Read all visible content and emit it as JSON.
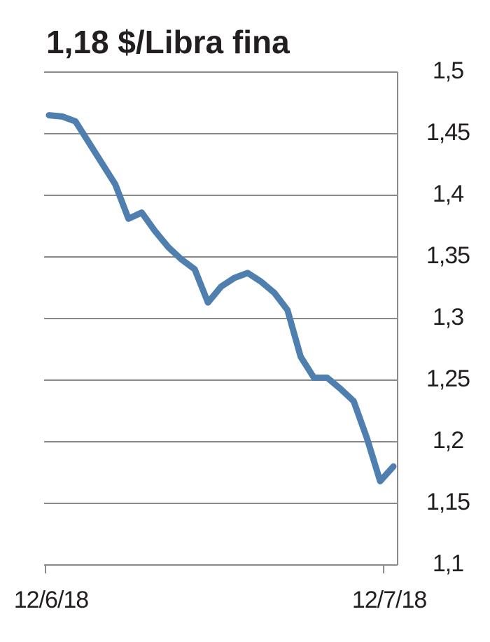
{
  "chart_data": {
    "type": "line",
    "title": "1,18 $/Libra fina",
    "categories": [
      "12/6/18",
      null,
      null,
      null,
      null,
      null,
      null,
      null,
      null,
      null,
      null,
      null,
      null,
      null,
      null,
      null,
      null,
      null,
      null,
      null,
      null,
      null,
      null,
      null,
      null,
      "12/7/18",
      null
    ],
    "series": [
      {
        "name": null,
        "color": "#4f7fae",
        "values": [
          1.465,
          1.464,
          1.46,
          1.443,
          1.426,
          1.409,
          1.381,
          1.386,
          1.371,
          1.358,
          1.348,
          1.34,
          1.313,
          1.326,
          1.333,
          1.337,
          1.33,
          1.321,
          1.307,
          1.269,
          1.252,
          1.252,
          1.243,
          1.233,
          1.203,
          1.168,
          1.18
        ]
      }
    ],
    "ylim": [
      1.1,
      1.5
    ],
    "yticks": [
      {
        "value": 1.1,
        "label": "1,1"
      },
      {
        "value": 1.15,
        "label": "1,15"
      },
      {
        "value": 1.2,
        "label": "1,2"
      },
      {
        "value": 1.25,
        "label": "1,25"
      },
      {
        "value": 1.3,
        "label": "1,3"
      },
      {
        "value": 1.35,
        "label": "1,35"
      },
      {
        "value": 1.4,
        "label": "1,4"
      },
      {
        "value": 1.45,
        "label": "1,45"
      },
      {
        "value": 1.5,
        "label": "1,5"
      }
    ],
    "grid": true,
    "y_axis_side": "right"
  }
}
